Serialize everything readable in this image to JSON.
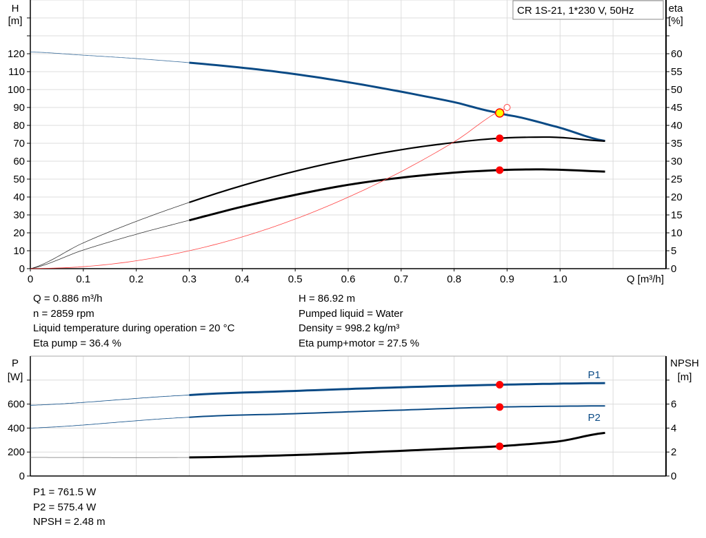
{
  "chart_data": [
    {
      "type": "line",
      "title": "CR 1S-21, 1*230 V, 50Hz",
      "xlabel": "Q [m³/h]",
      "ylabel_left": "H",
      "ylabel_left_unit": "[m]",
      "ylabel_right": "eta",
      "ylabel_right_unit": "[%]",
      "xlim": [
        0,
        1.2
      ],
      "ylim_left": [
        0,
        150
      ],
      "ylim_right": [
        0,
        75
      ],
      "x_ticks": [
        0,
        0.1,
        0.2,
        0.3,
        0.4,
        0.5,
        0.6,
        0.7,
        0.8,
        0.9,
        1.0
      ],
      "y_left_ticks": [
        0,
        10,
        20,
        30,
        40,
        50,
        60,
        70,
        80,
        90,
        100,
        110,
        120
      ],
      "y_right_ticks": [
        0,
        5,
        10,
        15,
        20,
        25,
        30,
        35,
        40,
        45,
        50,
        55,
        60
      ],
      "grid": true,
      "colors": {
        "head": "#0a4a85",
        "eta": "#000000",
        "system": "#ff4040",
        "duty_point": "#ff0000",
        "highlight": "#ffff00"
      },
      "series": [
        {
          "id": "head",
          "axis": "left",
          "operating_range": [
            0.3,
            1.085
          ],
          "x": [
            0,
            0.1,
            0.2,
            0.3,
            0.4,
            0.5,
            0.6,
            0.7,
            0.8,
            0.886,
            0.9,
            1.0,
            1.085
          ],
          "y": [
            121,
            119.2,
            117.3,
            115,
            112.2,
            108.6,
            104.1,
            98.8,
            93,
            86.92,
            85.8,
            78.7,
            71.3
          ]
        },
        {
          "id": "eta_pump",
          "axis": "right",
          "operating_range": [
            0.3,
            1.085
          ],
          "x": [
            0,
            0.1,
            0.2,
            0.3,
            0.4,
            0.5,
            0.6,
            0.7,
            0.8,
            0.886,
            0.95,
            1.0,
            1.085
          ],
          "y": [
            0,
            7.2,
            13.2,
            18.5,
            23.2,
            27.2,
            30.5,
            33.2,
            35.2,
            36.4,
            36.7,
            36.6,
            35.6
          ]
        },
        {
          "id": "eta_pump_motor",
          "axis": "right",
          "operating_range": [
            0.3,
            1.085
          ],
          "x": [
            0,
            0.1,
            0.2,
            0.3,
            0.4,
            0.5,
            0.6,
            0.7,
            0.8,
            0.886,
            0.95,
            1.0,
            1.085
          ],
          "y": [
            0,
            5.2,
            9.6,
            13.5,
            17.3,
            20.6,
            23.4,
            25.4,
            26.8,
            27.5,
            27.7,
            27.6,
            27.1
          ]
        },
        {
          "id": "system",
          "axis": "left",
          "x": [
            0,
            0.1,
            0.2,
            0.3,
            0.4,
            0.5,
            0.6,
            0.7,
            0.8,
            0.9
          ],
          "y": [
            0,
            1.1,
            4.4,
            10,
            17.7,
            27.7,
            39.9,
            54.2,
            70.8,
            89.7
          ]
        }
      ],
      "duty_point": {
        "Q": 0.886,
        "H": 86.92,
        "eta_pump": 36.4,
        "eta_pump_motor": 27.5
      },
      "open_marker": {
        "Q": 0.9,
        "H": 90
      }
    },
    {
      "type": "line",
      "xlim": [
        0,
        1.2
      ],
      "ylabel_left": "P",
      "ylabel_left_unit": "[W]",
      "ylabel_right": "NPSH",
      "ylabel_right_unit": "[m]",
      "ylim_left": [
        0,
        1000
      ],
      "ylim_right": [
        0,
        10
      ],
      "y_left_ticks": [
        0,
        200,
        400,
        600,
        800
      ],
      "y_left_tick_labels": [
        "0",
        "200",
        "400",
        "600",
        ""
      ],
      "y_right_ticks": [
        0,
        2,
        4,
        6,
        8
      ],
      "y_right_tick_labels": [
        "0",
        "2",
        "4",
        "6",
        ""
      ],
      "grid": true,
      "series": [
        {
          "id": "P1",
          "name": "P1",
          "axis": "left",
          "operating_range": [
            0.3,
            1.085
          ],
          "x": [
            0,
            0.3,
            0.5,
            0.7,
            0.886,
            1.085
          ],
          "y": [
            590,
            675,
            710,
            740,
            761.5,
            775
          ]
        },
        {
          "id": "P2",
          "name": "P2",
          "axis": "left",
          "operating_range": [
            0.3,
            1.085
          ],
          "x": [
            0,
            0.3,
            0.5,
            0.7,
            0.886,
            1.085
          ],
          "y": [
            400,
            490,
            520,
            550,
            575.4,
            585
          ]
        },
        {
          "id": "NPSH",
          "axis": "right",
          "operating_range": [
            0.3,
            1.085
          ],
          "x": [
            0,
            0.3,
            0.5,
            0.7,
            0.886,
            1.0,
            1.085
          ],
          "y": [
            1.55,
            1.55,
            1.75,
            2.1,
            2.48,
            2.9,
            3.6
          ]
        }
      ],
      "duty_point": {
        "Q": 0.886,
        "P1": 761.5,
        "P2": 575.4,
        "NPSH": 2.48
      }
    }
  ],
  "info_top": {
    "q": "Q = 0.886 m³/h",
    "n": "n = 2859 rpm",
    "temp": "Liquid temperature during operation = 20 °C",
    "eta": "Eta pump = 36.4 %",
    "h": "H = 86.92 m",
    "liquid": "Pumped liquid = Water",
    "density": "Density = 998.2 kg/m³",
    "eta_pm": "Eta pump+motor = 27.5 %"
  },
  "info_bottom": {
    "p1": "P1 = 761.5 W",
    "p2": "P2 = 575.4 W",
    "npsh": "NPSH = 2.48 m"
  }
}
